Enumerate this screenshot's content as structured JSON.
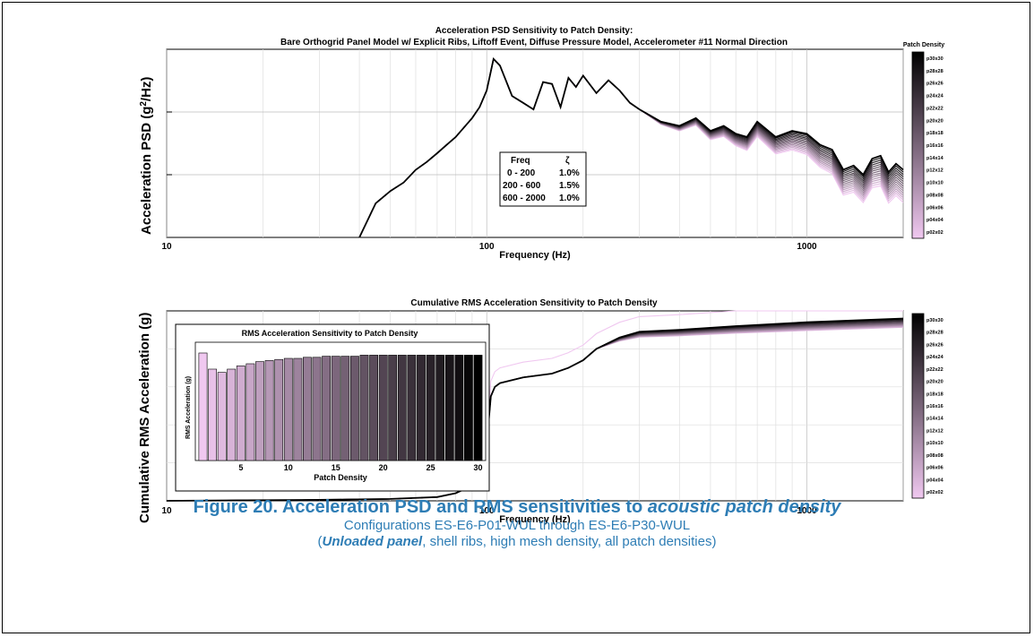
{
  "caption": {
    "title_prefix": "Figure 20. Acceleration PSD and RMS sensitivities to ",
    "title_emph": "acoustic patch density",
    "line2": "Configurations ES-E6-P01-WUL through ES-E6-P30-WUL",
    "line3_open": "(",
    "line3_emph": "Unloaded panel",
    "line3_rest": ", shell ribs, high mesh density, all patch densities)"
  },
  "colors": {
    "low_patch": "#F0C8F0",
    "high_patch": "#000000",
    "caption": "#2E7DB5"
  },
  "chart_data": [
    {
      "type": "line",
      "title": "Acceleration PSD Sensitivity to Patch Density:",
      "subtitle": "Bare Orthogrid Panel Model w/ Explicit Ribs, Liftoff Event, Diffuse Pressure Model, Accelerometer #11 Normal Direction",
      "xlabel": "Frequency (Hz)",
      "ylabel": "Acceleration PSD (g²/Hz)",
      "x_scale": "log",
      "y_scale": "log",
      "xlim": [
        10,
        2000
      ],
      "ylim": [
        0.001,
        1
      ],
      "x_ticks": [
        "10",
        "100",
        "1000"
      ],
      "y_ticks_labeled": false,
      "grid": true,
      "legend": {
        "title": "Patch Density",
        "placement": "right",
        "entries": [
          "p30x30",
          "p28x28",
          "p26x26",
          "p24x24",
          "p22x22",
          "p20x20",
          "p18x18",
          "p16x16",
          "p14x14",
          "p12x12",
          "p10x10",
          "p08x08",
          "p06x06",
          "p04x04",
          "p02x02"
        ]
      },
      "annotation_table": {
        "header": [
          "Freq",
          "ζ"
        ],
        "rows": [
          [
            "0 - 200",
            "1.0%"
          ],
          [
            "200 - 600",
            "1.5%"
          ],
          [
            "600 - 2000",
            "1.0%"
          ]
        ]
      },
      "series_common": {
        "x": [
          40,
          45,
          50,
          55,
          60,
          65,
          70,
          75,
          80,
          90,
          95,
          100,
          105,
          110,
          120,
          130,
          140,
          150,
          160,
          170,
          180,
          190,
          200,
          220,
          240,
          260,
          280,
          300,
          350,
          400,
          450,
          500,
          550,
          600,
          650,
          700,
          800,
          900,
          1000,
          1100,
          1200,
          1300,
          1400,
          1500,
          1600,
          1700,
          1800,
          1900,
          2000
        ],
        "y": [
          0.001,
          0.0035,
          0.0055,
          0.0075,
          0.012,
          0.016,
          0.022,
          0.03,
          0.04,
          0.08,
          0.12,
          0.22,
          0.7,
          0.55,
          0.18,
          0.14,
          0.11,
          0.3,
          0.28,
          0.12,
          0.35,
          0.25,
          0.38,
          0.2,
          0.32,
          0.22,
          0.14,
          0.11,
          0.07,
          0.06,
          0.08,
          0.05,
          0.06,
          0.045,
          0.04,
          0.07,
          0.04,
          0.05,
          0.045,
          0.03,
          0.025,
          0.012,
          0.014,
          0.01,
          0.018,
          0.02,
          0.011,
          0.015,
          0.012
        ]
      },
      "high_freq_spread": {
        "from_x": 300,
        "factor_lowest_patch_at_2000hz": 0.3
      }
    },
    {
      "type": "line",
      "title": "Cumulative RMS Acceleration Sensitivity to Patch Density",
      "xlabel": "Frequency (Hz)",
      "ylabel": "Cumulative RMS Acceleration (g)",
      "x_scale": "log",
      "xlim": [
        10,
        2000
      ],
      "ylim": [
        0,
        1
      ],
      "x_ticks": [
        "10",
        "100",
        "1000"
      ],
      "y_ticks_labeled": false,
      "grid": true,
      "legend": {
        "placement": "right",
        "entries": [
          "p30x30",
          "p28x28",
          "p26x26",
          "p24x24",
          "p22x22",
          "p20x20",
          "p18x18",
          "p16x16",
          "p14x14",
          "p12x12",
          "p10x10",
          "p08x08",
          "p06x06",
          "p04x04",
          "p02x02"
        ]
      },
      "series_common": {
        "x": [
          10,
          30,
          50,
          70,
          80,
          90,
          95,
          100,
          103,
          106,
          110,
          130,
          160,
          180,
          200,
          220,
          260,
          300,
          400,
          600,
          1000,
          2000
        ],
        "y": [
          0.0,
          0.005,
          0.01,
          0.02,
          0.04,
          0.08,
          0.15,
          0.3,
          0.55,
          0.6,
          0.62,
          0.65,
          0.67,
          0.7,
          0.74,
          0.8,
          0.86,
          0.89,
          0.9,
          0.92,
          0.94,
          0.96
        ]
      },
      "lowest_patch_series_offset": 0.08
    },
    {
      "type": "bar",
      "title": "RMS Acceleration Sensitivity to Patch Density",
      "xlabel": "Patch Density",
      "ylabel": "RMS Acceleration (g)",
      "x_ticks": [
        "5",
        "10",
        "15",
        "20",
        "25",
        "30"
      ],
      "categories": [
        1,
        2,
        3,
        4,
        5,
        6,
        7,
        8,
        9,
        10,
        11,
        12,
        13,
        14,
        15,
        16,
        17,
        18,
        19,
        20,
        21,
        22,
        23,
        24,
        25,
        26,
        27,
        28,
        29,
        30
      ],
      "values": [
        1.0,
        0.85,
        0.82,
        0.85,
        0.88,
        0.9,
        0.92,
        0.93,
        0.94,
        0.95,
        0.95,
        0.96,
        0.96,
        0.97,
        0.97,
        0.97,
        0.97,
        0.98,
        0.98,
        0.98,
        0.98,
        0.98,
        0.98,
        0.98,
        0.98,
        0.98,
        0.98,
        0.98,
        0.98,
        0.98
      ],
      "ylim": [
        0,
        1.1
      ]
    }
  ]
}
